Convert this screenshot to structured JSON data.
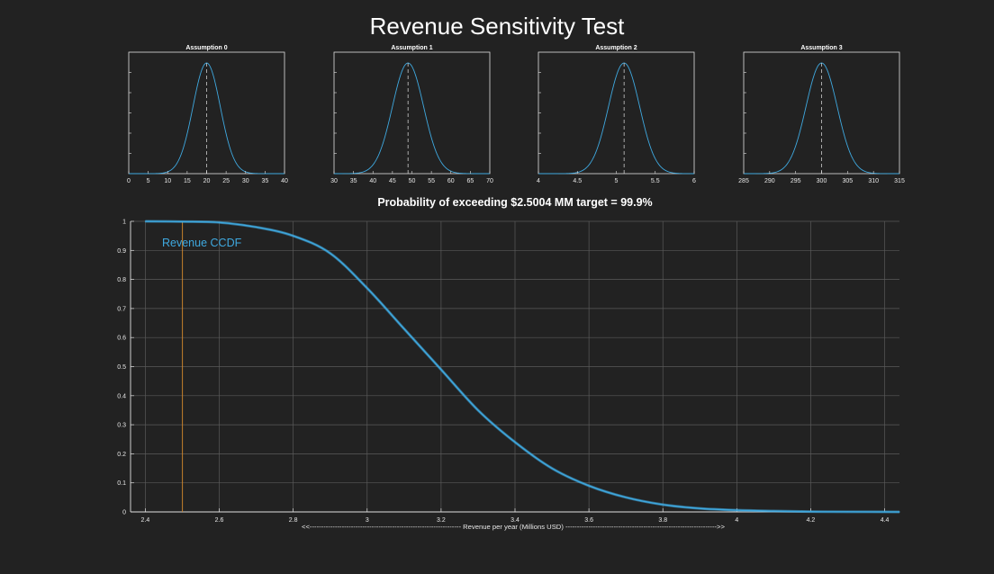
{
  "figure": {
    "title": "Revenue Sensitivity Test"
  },
  "colors": {
    "background": "#222222",
    "axes_edge": "#e0e0e0",
    "grid": "#5a5a5a",
    "curve": "#3fa9e0",
    "target_line": "#d88a2c",
    "mean_line": "#cccccc"
  },
  "chart_data": [
    {
      "type": "line",
      "title": "Assumption 0",
      "distribution": "normal",
      "mean": 20,
      "std": 3.5,
      "xlim": [
        0,
        40
      ],
      "xticks": [
        0,
        5,
        10,
        15,
        20,
        25,
        30,
        35,
        40
      ],
      "mean_marker": 20,
      "grid": false
    },
    {
      "type": "line",
      "title": "Assumption 1",
      "distribution": "normal",
      "mean": 49,
      "std": 4,
      "xlim": [
        30,
        70
      ],
      "xticks": [
        30,
        35,
        40,
        45,
        50,
        55,
        60,
        65,
        70
      ],
      "mean_marker": 49,
      "grid": false
    },
    {
      "type": "line",
      "title": "Assumption 2",
      "distribution": "normal",
      "mean": 5.1,
      "std": 0.2,
      "xlim": [
        4,
        6
      ],
      "xticks": [
        4,
        4.5,
        5,
        5.5,
        6
      ],
      "mean_marker": 5.1,
      "grid": false
    },
    {
      "type": "line",
      "title": "Assumption 3",
      "distribution": "normal",
      "mean": 300,
      "std": 3,
      "xlim": [
        285,
        315
      ],
      "xticks": [
        285,
        290,
        295,
        300,
        305,
        310,
        315
      ],
      "mean_marker": 300,
      "grid": false
    },
    {
      "type": "line",
      "title": "Probability of exceeding $2.5004 MM target = 99.9%",
      "xlabel": "<<------------------------------------------------------------------ Revenue per year (Millions USD) ------------------------------------------------------------------>>",
      "ylabel": "",
      "xlim": [
        2.36,
        4.44
      ],
      "ylim": [
        0,
        1
      ],
      "xticks": [
        "2.4",
        "2.6",
        "2.8",
        "3",
        "3.2",
        "3.4",
        "3.6",
        "3.8",
        "4",
        "4.2",
        "4.4"
      ],
      "yticks": [
        "0",
        "0.1",
        "0.2",
        "0.3",
        "0.4",
        "0.5",
        "0.6",
        "0.7",
        "0.8",
        "0.9",
        "1"
      ],
      "grid": true,
      "target_line_x": 2.5004,
      "legend": "top-left",
      "series": [
        {
          "name": "Revenue CCDF",
          "x": [
            2.4,
            2.5,
            2.6,
            2.7,
            2.8,
            2.9,
            3.0,
            3.1,
            3.2,
            3.3,
            3.4,
            3.5,
            3.6,
            3.7,
            3.8,
            3.9,
            4.0,
            4.1,
            4.2,
            4.3,
            4.44
          ],
          "y": [
            1.0,
            0.999,
            0.996,
            0.98,
            0.95,
            0.89,
            0.77,
            0.63,
            0.49,
            0.35,
            0.24,
            0.15,
            0.09,
            0.05,
            0.025,
            0.012,
            0.006,
            0.003,
            0.001,
            0.0005,
            0.0
          ]
        }
      ]
    }
  ]
}
